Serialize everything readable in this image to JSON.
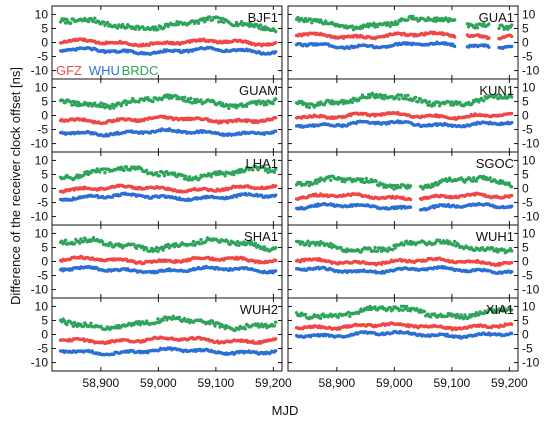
{
  "figure": {
    "ylabel": "Difference of the receiver clock offset [ns]",
    "xlabel": "MJD",
    "legend": [
      {
        "label": "GFZ",
        "color": "#f04646"
      },
      {
        "label": "WHU",
        "color": "#2b6fd6"
      },
      {
        "label": "BRDC",
        "color": "#2ea35a"
      }
    ],
    "x_tick_labels": [
      "58,900",
      "59,000",
      "59,100",
      "59,200"
    ],
    "y_tick_labels": [
      "10",
      "5",
      "0",
      "-5",
      "-10"
    ]
  },
  "chart_data": {
    "type": "scatter",
    "xlim": [
      58815,
      59215
    ],
    "ylim": [
      -13,
      13
    ],
    "x_ticks": [
      58900,
      59000,
      59100,
      59200
    ],
    "y_ticks": [
      10,
      5,
      0,
      -5,
      -10
    ],
    "grid": false,
    "legend_location": "inside top-left panel, lower-left",
    "series_names": [
      "GFZ",
      "WHU",
      "BRDC"
    ],
    "panels": [
      {
        "station": "BJF1",
        "column": "left",
        "row": 1,
        "levels": {
          "GFZ": 0,
          "WHU": -3,
          "BRDC": 6.5
        },
        "gaps": []
      },
      {
        "station": "GUA1",
        "column": "right",
        "row": 1,
        "levels": {
          "GFZ": 2.5,
          "WHU": -1,
          "BRDC": 7
        },
        "gaps": [
          [
            59105,
            59125
          ],
          [
            59165,
            59180
          ]
        ]
      },
      {
        "station": "GUAM",
        "column": "left",
        "row": 2,
        "levels": {
          "GFZ": -1.5,
          "WHU": -6,
          "BRDC": 5
        },
        "gaps": []
      },
      {
        "station": "KUN1",
        "column": "right",
        "row": 2,
        "levels": {
          "GFZ": 0,
          "WHU": -3,
          "BRDC": 5.5
        },
        "gaps": []
      },
      {
        "station": "LHA1",
        "column": "left",
        "row": 3,
        "levels": {
          "GFZ": 0,
          "WHU": -3,
          "BRDC": 5.5
        },
        "gaps": []
      },
      {
        "station": "SGOC",
        "column": "right",
        "row": 3,
        "levels": {
          "GFZ": -3,
          "WHU": -6.5,
          "BRDC": 2
        },
        "gaps": [
          [
            59030,
            59045
          ]
        ]
      },
      {
        "station": "SHA1",
        "column": "left",
        "row": 4,
        "levels": {
          "GFZ": 0.5,
          "WHU": -3,
          "BRDC": 6
        },
        "gaps": []
      },
      {
        "station": "WUH1",
        "column": "right",
        "row": 4,
        "levels": {
          "GFZ": 0,
          "WHU": -3,
          "BRDC": 5.5
        },
        "gaps": []
      },
      {
        "station": "WUH2",
        "column": "left",
        "row": 5,
        "levels": {
          "GFZ": -2,
          "WHU": -6,
          "BRDC": 4
        },
        "gaps": []
      },
      {
        "station": "XIA1",
        "column": "right",
        "row": 5,
        "levels": {
          "GFZ": 3,
          "WHU": 0,
          "BRDC": 8
        },
        "gaps": []
      }
    ]
  }
}
